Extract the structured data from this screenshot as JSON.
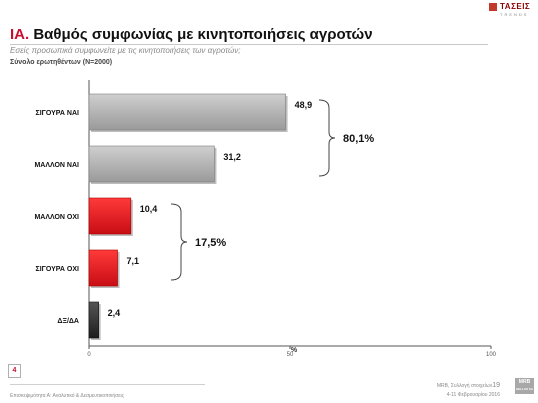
{
  "header": {
    "logo_name": "ΤΑΣΕΙΣ",
    "logo_sub": "TRENDS",
    "title_number": "ΙΑ.",
    "title_text": "Βαθμός συμφωνίας με κινητοποιήσεις αγροτών",
    "subtitle": "Εσείς προσωπικά συμφωνείτε με τις κινητοποιήσεις των αγροτών;",
    "base": "Σύνολο ερωτηθέντων (N=2000)"
  },
  "chart_data": {
    "type": "bar",
    "orientation": "horizontal",
    "categories": [
      "ΣΙΓΟΥΡΑ ΝΑΙ",
      "ΜΑΛΛΟΝ ΝΑΙ",
      "ΜΑΛΛΟΝ ΟΧΙ",
      "ΣΙΓΟΥΡΑ ΟΧΙ",
      "ΔΞ/ΔΑ"
    ],
    "value_labels": [
      "48,9",
      "31,2",
      "10,4",
      "7,1",
      "2,4"
    ],
    "values": [
      48.9,
      31.2,
      10.4,
      7.1,
      2.4
    ],
    "colors": [
      "#a9a9a9",
      "#a9a9a9",
      "#e0141e",
      "#e0141e",
      "#2b2b2b"
    ],
    "xlim": [
      0,
      100
    ],
    "xticks": [
      0,
      50,
      100
    ],
    "xtick_labels": [
      "0",
      "50",
      "100"
    ],
    "xlabel": "%",
    "groups": [
      {
        "label": "80,1%",
        "categories": [
          "ΣΙΓΟΥΡΑ ΝΑΙ",
          "ΜΑΛΛΟΝ ΝΑΙ"
        ]
      },
      {
        "label": "17,5%",
        "categories": [
          "ΜΑΛΛΟΝ ΟΧΙ",
          "ΣΙΓΟΥΡΑ ΟΧΙ"
        ]
      }
    ],
    "grid": false,
    "legend": "none"
  },
  "footer": {
    "page_number": "4",
    "left_text": "Επισκεψιμότητα Α: Αναλυτικό & Δεσμευτικοποιήσεις",
    "right_line1": "MRB, Συλλογή στοιχείων",
    "slide_number": "19",
    "right_line2": "4-11 Φεβρουαρίου 2016",
    "logo_text": "MRB",
    "logo_sub": "HELLAS SA"
  }
}
